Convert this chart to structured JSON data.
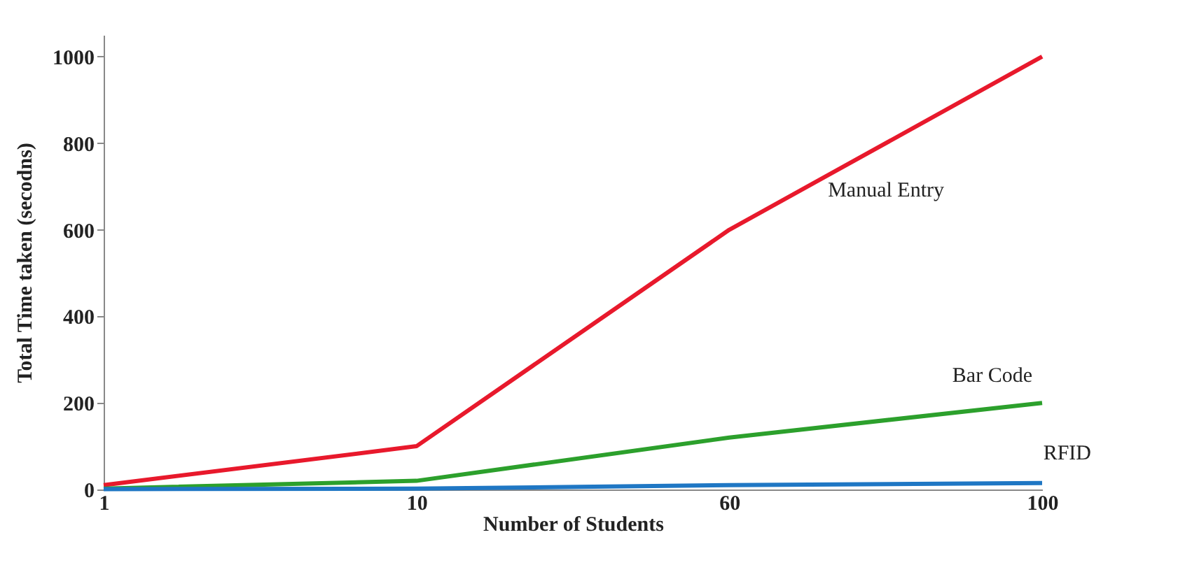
{
  "chart_data": {
    "type": "line",
    "xlabel": "Number of Students",
    "ylabel": "Total Time taken (secodns)",
    "categories": [
      "1",
      "10",
      "60",
      "100"
    ],
    "ylim": [
      0,
      1050
    ],
    "yticks": [
      0,
      200,
      400,
      600,
      800,
      1000
    ],
    "grid": false,
    "marker": "none",
    "line_style": "solid",
    "series": [
      {
        "name": "Manual Entry",
        "color": "#e8192c",
        "values": [
          10,
          100,
          600,
          1000
        ]
      },
      {
        "name": "Bar Code",
        "color": "#2ca02c",
        "values": [
          2,
          20,
          120,
          200
        ]
      },
      {
        "name": "RFID",
        "color": "#1f77c4",
        "values": [
          1,
          2,
          10,
          15
        ]
      }
    ]
  }
}
